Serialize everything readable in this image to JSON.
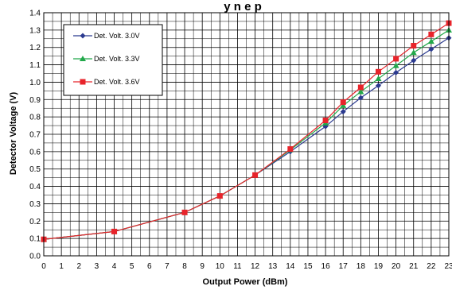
{
  "chart_data": {
    "type": "line",
    "title": "y          n     e             p",
    "xlabel": "Output Power (dBm)",
    "ylabel": "Detector Voltage (V)",
    "xlim": [
      0,
      23
    ],
    "ylim": [
      0,
      1.4
    ],
    "x_ticks": [
      "0",
      "1",
      "2",
      "3",
      "4",
      "5",
      "6",
      "7",
      "8",
      "9",
      "10",
      "11",
      "12",
      "13",
      "14",
      "15",
      "16",
      "17",
      "18",
      "19",
      "20",
      "21",
      "22",
      "23"
    ],
    "y_ticks": [
      "0.0",
      "0.1",
      "0.2",
      "0.3",
      "0.4",
      "0.5",
      "0.6",
      "0.7",
      "0.8",
      "0.9",
      "1.0",
      "1.1",
      "1.2",
      "1.3",
      "1.4"
    ],
    "grid": true,
    "legend_position": "top-left",
    "x": [
      0,
      4,
      8,
      10,
      12,
      14,
      16,
      17,
      18,
      19,
      20,
      21,
      22,
      23
    ],
    "series": [
      {
        "name": "Det. Volt. 3.0V",
        "color": "#2b3a8f",
        "marker": "diamond",
        "values": [
          0.095,
          0.14,
          0.25,
          0.345,
          0.465,
          0.6,
          0.745,
          0.83,
          0.91,
          0.98,
          1.055,
          1.125,
          1.19,
          1.255
        ]
      },
      {
        "name": "Det. Volt. 3.3V",
        "color": "#22a84a",
        "marker": "triangle",
        "values": [
          0.095,
          0.14,
          0.25,
          0.345,
          0.465,
          0.61,
          0.765,
          0.865,
          0.945,
          1.02,
          1.095,
          1.17,
          1.235,
          1.3
        ]
      },
      {
        "name": "Det. Volt. 3.6V",
        "color": "#e8242b",
        "marker": "square",
        "values": [
          0.095,
          0.14,
          0.25,
          0.345,
          0.465,
          0.615,
          0.78,
          0.885,
          0.97,
          1.06,
          1.135,
          1.21,
          1.275,
          1.34
        ]
      }
    ]
  }
}
